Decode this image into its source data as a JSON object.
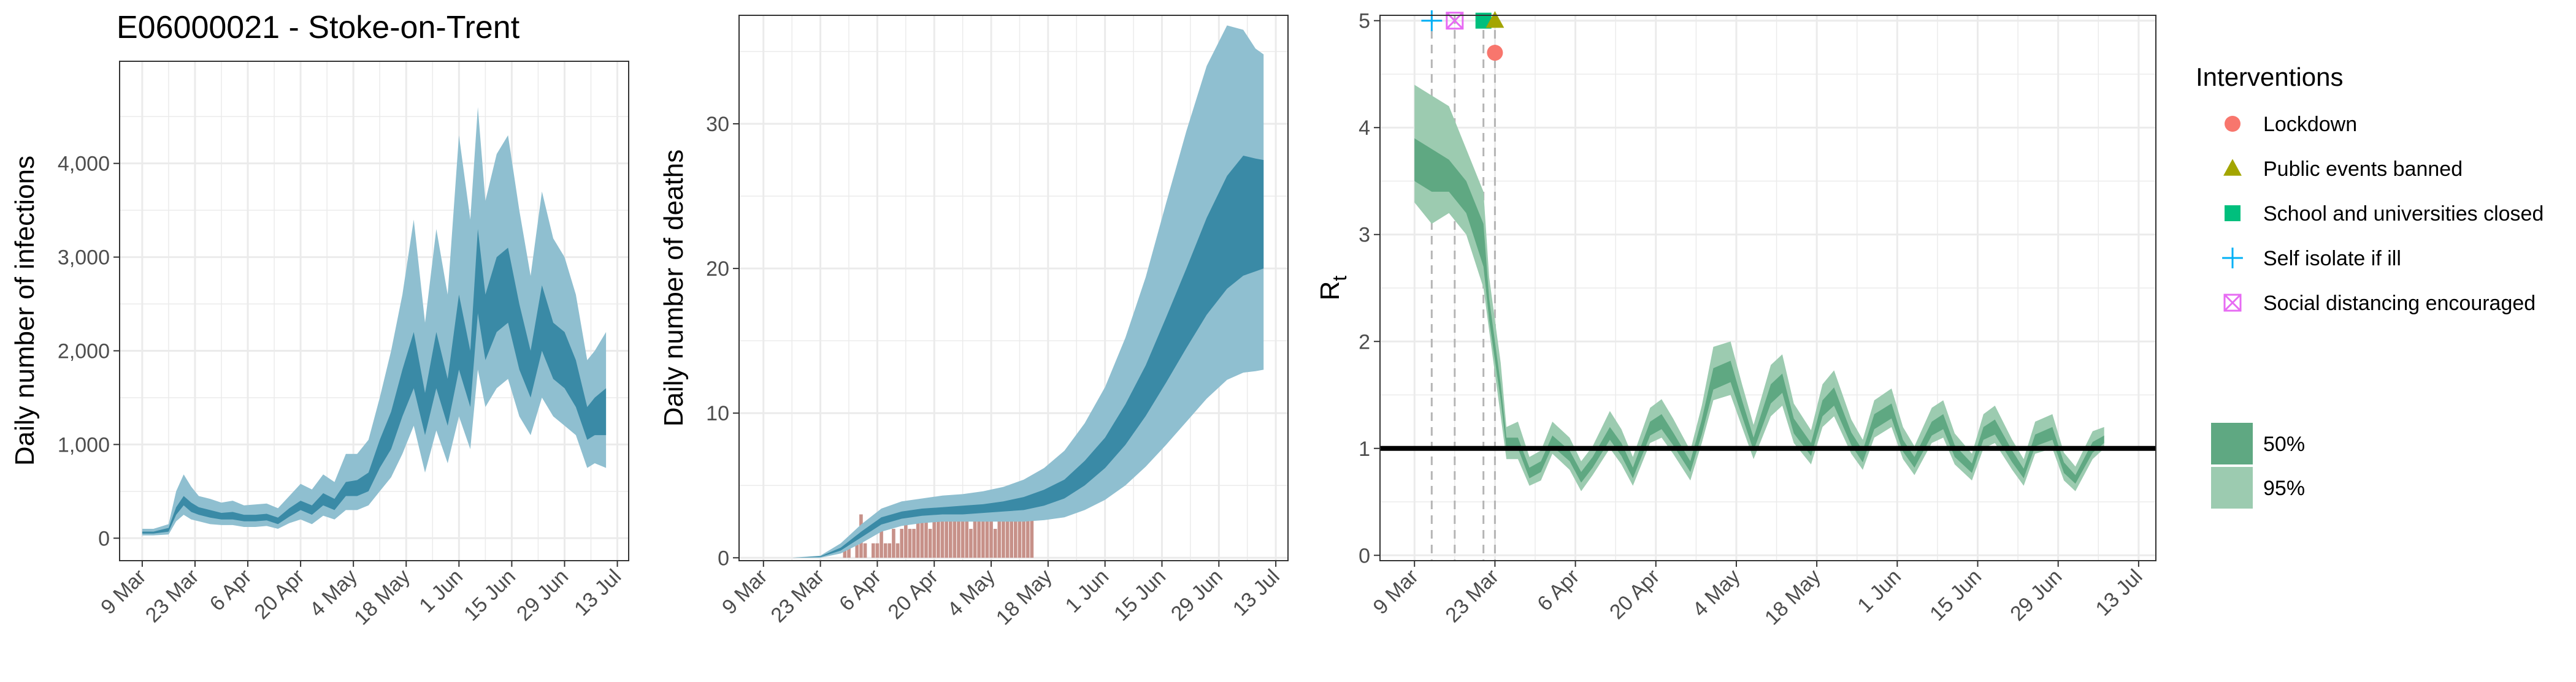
{
  "title": "E06000021 - Stoke-on-Trent",
  "date_labels": [
    "9 Mar",
    "23 Mar",
    "6 Apr",
    "20 Apr",
    "4 May",
    "18 May",
    "1 Jun",
    "15 Jun",
    "29 Jun",
    "13 Jul"
  ],
  "colors": {
    "infections_band_95": "#8fbfd0",
    "infections_band_50": "#3a8aa6",
    "deaths_band_95": "#8fbfd0",
    "deaths_band_50": "#3a8aa6",
    "observed_deaths_bar": "#c79189",
    "rt_band_95": "#9ccbb0",
    "rt_band_50": "#5fa882",
    "grid": "#ebebeb",
    "lockdown": "#f8766d",
    "public_events_banned": "#a3a500",
    "schools_closed": "#00bf7d",
    "self_isolate": "#00b0f6",
    "social_distancing": "#e76bf3"
  },
  "chart_data": [
    {
      "type": "area",
      "panel": "infections",
      "ylabel": "Daily number of infections",
      "y_ticks": [
        0,
        1000,
        2000,
        3000,
        4000
      ],
      "y_tick_labels": [
        "0",
        "1,000",
        "2,000",
        "3,000",
        "4,000"
      ],
      "ylim": [
        0,
        4700
      ],
      "x_start": "2020-03-09",
      "x_end": "2020-07-10",
      "knots": {
        "dates": [
          "2020-03-09",
          "2020-03-12",
          "2020-03-16",
          "2020-03-18",
          "2020-03-20",
          "2020-03-22",
          "2020-03-24",
          "2020-03-27",
          "2020-03-30",
          "2020-04-02",
          "2020-04-05",
          "2020-04-08",
          "2020-04-11",
          "2020-04-14",
          "2020-04-17",
          "2020-04-20",
          "2020-04-23",
          "2020-04-26",
          "2020-04-29",
          "2020-05-02",
          "2020-05-05",
          "2020-05-08",
          "2020-05-11",
          "2020-05-14",
          "2020-05-17",
          "2020-05-20",
          "2020-05-23",
          "2020-05-26",
          "2020-05-29",
          "2020-06-01",
          "2020-06-04",
          "2020-06-06",
          "2020-06-08",
          "2020-06-11",
          "2020-06-14",
          "2020-06-17",
          "2020-06-20",
          "2020-06-23",
          "2020-06-26",
          "2020-06-29",
          "2020-07-02",
          "2020-07-05",
          "2020-07-07",
          "2020-07-10"
        ],
        "lower95": [
          30,
          30,
          40,
          180,
          250,
          200,
          180,
          150,
          140,
          140,
          120,
          120,
          130,
          100,
          160,
          200,
          150,
          240,
          200,
          300,
          300,
          350,
          500,
          650,
          900,
          1200,
          700,
          1150,
          800,
          1300,
          950,
          1800,
          1400,
          1600,
          1700,
          1300,
          1100,
          1500,
          1300,
          1200,
          1100,
          750,
          800,
          750
        ],
        "lower50": [
          50,
          50,
          70,
          250,
          350,
          280,
          250,
          220,
          200,
          200,
          180,
          180,
          190,
          150,
          230,
          300,
          250,
          350,
          300,
          450,
          450,
          500,
          750,
          950,
          1300,
          1600,
          1100,
          1600,
          1200,
          1800,
          1400,
          2400,
          1900,
          2200,
          2300,
          1800,
          1500,
          2000,
          1700,
          1600,
          1400,
          1050,
          1100,
          1100
        ],
        "upper50": [
          70,
          70,
          110,
          330,
          450,
          380,
          330,
          300,
          270,
          280,
          250,
          250,
          260,
          220,
          320,
          400,
          350,
          480,
          420,
          600,
          620,
          700,
          1050,
          1350,
          1800,
          2200,
          1550,
          2200,
          1700,
          2600,
          2000,
          3300,
          2600,
          3000,
          3100,
          2500,
          2000,
          2700,
          2300,
          2200,
          1900,
          1400,
          1500,
          1600
        ],
        "upper95": [
          100,
          100,
          150,
          500,
          680,
          550,
          450,
          420,
          380,
          400,
          350,
          360,
          370,
          320,
          450,
          580,
          520,
          680,
          600,
          900,
          900,
          1050,
          1500,
          2000,
          2600,
          3400,
          2300,
          3300,
          2600,
          4300,
          3400,
          4600,
          3600,
          4100,
          4300,
          3500,
          2800,
          3700,
          3200,
          3000,
          2600,
          1900,
          2000,
          2200
        ]
      }
    },
    {
      "type": "area",
      "panel": "deaths",
      "ylabel": "Daily number of deaths",
      "y_ticks": [
        0,
        10,
        20,
        30
      ],
      "y_tick_labels": [
        "0",
        "10",
        "20",
        "30"
      ],
      "ylim": [
        0,
        37
      ],
      "x_start": "2020-03-09",
      "x_end": "2020-07-10",
      "knots": {
        "dates": [
          "2020-03-09",
          "2020-03-16",
          "2020-03-23",
          "2020-03-28",
          "2020-04-02",
          "2020-04-07",
          "2020-04-12",
          "2020-04-17",
          "2020-04-22",
          "2020-04-27",
          "2020-05-02",
          "2020-05-07",
          "2020-05-12",
          "2020-05-17",
          "2020-05-22",
          "2020-05-27",
          "2020-06-01",
          "2020-06-06",
          "2020-06-11",
          "2020-06-16",
          "2020-06-21",
          "2020-06-26",
          "2020-07-01",
          "2020-07-05",
          "2020-07-08",
          "2020-07-10"
        ],
        "lower95": [
          0,
          0,
          0,
          0.3,
          1,
          1.8,
          2.2,
          2.4,
          2.5,
          2.5,
          2.5,
          2.5,
          2.5,
          2.6,
          2.8,
          3.3,
          4,
          5,
          6.3,
          7.8,
          9.4,
          11,
          12.3,
          12.8,
          12.9,
          13
        ],
        "lower50": [
          0,
          0,
          0.05,
          0.5,
          1.4,
          2.3,
          2.7,
          2.9,
          3,
          3,
          3.1,
          3.2,
          3.3,
          3.6,
          4.1,
          5,
          6.2,
          7.8,
          9.8,
          12.1,
          14.5,
          16.8,
          18.6,
          19.5,
          19.8,
          20
        ],
        "upper50": [
          0,
          0,
          0.1,
          0.7,
          1.8,
          2.8,
          3.2,
          3.4,
          3.5,
          3.6,
          3.7,
          3.9,
          4.2,
          4.7,
          5.4,
          6.7,
          8.3,
          10.6,
          13.3,
          16.6,
          20,
          23.5,
          26.4,
          27.8,
          27.6,
          27.5
        ],
        "upper95": [
          0,
          0,
          0.15,
          1,
          2.3,
          3.4,
          3.9,
          4.1,
          4.3,
          4.4,
          4.6,
          4.9,
          5.4,
          6.2,
          7.4,
          9.3,
          11.8,
          15.2,
          19.4,
          24.5,
          29.5,
          34,
          36.8,
          36.5,
          35.2,
          34.8
        ]
      },
      "bars": {
        "dates": [
          "2020-03-25",
          "2020-03-26",
          "2020-03-27",
          "2020-03-28",
          "2020-03-29",
          "2020-03-30",
          "2020-03-31",
          "2020-04-01",
          "2020-04-02",
          "2020-04-03",
          "2020-04-04",
          "2020-04-05",
          "2020-04-06",
          "2020-04-07",
          "2020-04-08",
          "2020-04-09",
          "2020-04-10",
          "2020-04-11",
          "2020-04-12",
          "2020-04-13",
          "2020-04-14",
          "2020-04-15",
          "2020-04-16",
          "2020-04-17",
          "2020-04-18",
          "2020-04-19",
          "2020-04-20",
          "2020-04-21",
          "2020-04-22",
          "2020-04-23",
          "2020-04-24",
          "2020-04-25",
          "2020-04-26",
          "2020-04-27",
          "2020-04-28",
          "2020-04-29",
          "2020-04-30",
          "2020-05-01",
          "2020-05-02",
          "2020-05-03",
          "2020-05-04",
          "2020-05-05",
          "2020-05-06",
          "2020-05-07",
          "2020-05-08",
          "2020-05-09",
          "2020-05-10",
          "2020-05-11",
          "2020-05-12",
          "2020-05-13",
          "2020-05-14"
        ],
        "values": [
          0,
          0,
          0,
          0,
          1,
          1,
          0,
          1,
          3,
          1,
          0,
          1,
          1,
          2,
          1,
          1,
          2,
          1,
          2,
          3,
          2,
          2,
          3,
          4,
          3,
          2,
          3,
          3,
          4,
          4,
          3,
          3,
          4,
          3,
          3,
          2,
          3,
          3,
          4,
          3,
          3,
          2,
          3,
          3,
          3,
          4,
          3,
          3,
          3,
          3,
          3
        ]
      }
    },
    {
      "type": "area",
      "panel": "rt",
      "ylabel": "R",
      "ylabel_subscript": "t",
      "y_ticks": [
        0,
        1,
        2,
        3,
        4,
        5
      ],
      "y_tick_labels": [
        "0",
        "1",
        "2",
        "3",
        "4",
        "5"
      ],
      "ylim": [
        0,
        5
      ],
      "reference_line": 1,
      "x_start": "2020-03-09",
      "x_end": "2020-07-10",
      "knots": {
        "dates": [
          "2020-03-09",
          "2020-03-12",
          "2020-03-15",
          "2020-03-18",
          "2020-03-21",
          "2020-03-22",
          "2020-03-24",
          "2020-03-25",
          "2020-03-27",
          "2020-03-29",
          "2020-03-31",
          "2020-04-02",
          "2020-04-05",
          "2020-04-07",
          "2020-04-09",
          "2020-04-12",
          "2020-04-14",
          "2020-04-16",
          "2020-04-19",
          "2020-04-21",
          "2020-04-23",
          "2020-04-26",
          "2020-04-28",
          "2020-04-30",
          "2020-05-03",
          "2020-05-05",
          "2020-05-07",
          "2020-05-10",
          "2020-05-12",
          "2020-05-14",
          "2020-05-17",
          "2020-05-19",
          "2020-05-21",
          "2020-05-24",
          "2020-05-26",
          "2020-05-28",
          "2020-05-31",
          "2020-06-02",
          "2020-06-04",
          "2020-06-07",
          "2020-06-09",
          "2020-06-11",
          "2020-06-14",
          "2020-06-16",
          "2020-06-18",
          "2020-06-21",
          "2020-06-23",
          "2020-06-25",
          "2020-06-28",
          "2020-06-30",
          "2020-07-02",
          "2020-07-05",
          "2020-07-07"
        ],
        "lower95": [
          3.3,
          3.1,
          3.2,
          3.0,
          2.5,
          2.1,
          1.3,
          0.9,
          0.9,
          0.65,
          0.7,
          0.95,
          0.8,
          0.6,
          0.75,
          1.0,
          0.85,
          0.65,
          1.05,
          1.1,
          0.95,
          0.7,
          1.05,
          1.45,
          1.5,
          1.2,
          0.9,
          1.3,
          1.4,
          1.05,
          0.85,
          1.2,
          1.3,
          0.95,
          0.8,
          1.1,
          1.2,
          0.9,
          0.75,
          1.05,
          1.1,
          0.85,
          0.7,
          1.0,
          1.05,
          0.8,
          0.65,
          0.95,
          1.0,
          0.7,
          0.6,
          0.9,
          1.0
        ],
        "lower50": [
          3.5,
          3.4,
          3.4,
          3.2,
          2.7,
          2.2,
          1.45,
          1.0,
          1.0,
          0.72,
          0.78,
          1.02,
          0.88,
          0.68,
          0.82,
          1.08,
          0.93,
          0.72,
          1.12,
          1.18,
          1.03,
          0.78,
          1.13,
          1.55,
          1.62,
          1.3,
          0.98,
          1.42,
          1.52,
          1.14,
          0.93,
          1.3,
          1.4,
          1.03,
          0.87,
          1.18,
          1.28,
          0.97,
          0.82,
          1.12,
          1.18,
          0.92,
          0.77,
          1.08,
          1.13,
          0.87,
          0.72,
          1.02,
          1.08,
          0.77,
          0.67,
          0.96,
          1.05
        ],
        "upper50": [
          3.9,
          3.8,
          3.7,
          3.5,
          3.1,
          2.4,
          1.6,
          1.1,
          1.1,
          0.82,
          0.88,
          1.12,
          0.98,
          0.78,
          0.92,
          1.2,
          1.05,
          0.82,
          1.25,
          1.32,
          1.15,
          0.88,
          1.27,
          1.75,
          1.82,
          1.45,
          1.1,
          1.6,
          1.7,
          1.28,
          1.05,
          1.45,
          1.57,
          1.15,
          0.98,
          1.32,
          1.42,
          1.08,
          0.92,
          1.25,
          1.32,
          1.03,
          0.86,
          1.2,
          1.27,
          0.98,
          0.81,
          1.13,
          1.2,
          0.87,
          0.75,
          1.06,
          1.12
        ],
        "upper95": [
          4.4,
          4.3,
          4.2,
          3.8,
          3.4,
          2.6,
          1.8,
          1.2,
          1.25,
          0.92,
          0.98,
          1.25,
          1.1,
          0.88,
          1.02,
          1.35,
          1.18,
          0.92,
          1.38,
          1.46,
          1.28,
          0.98,
          1.4,
          1.95,
          2.0,
          1.6,
          1.22,
          1.78,
          1.88,
          1.42,
          1.17,
          1.6,
          1.73,
          1.27,
          1.08,
          1.45,
          1.56,
          1.2,
          1.02,
          1.38,
          1.45,
          1.14,
          0.95,
          1.32,
          1.4,
          1.08,
          0.9,
          1.25,
          1.32,
          0.96,
          0.83,
          1.16,
          1.2
        ]
      },
      "interventions": [
        {
          "key": "self_isolate",
          "date": "2020-03-12",
          "y": 5.0,
          "shape": "plus"
        },
        {
          "key": "social_distancing",
          "date": "2020-03-16",
          "y": 5.0,
          "shape": "square-x"
        },
        {
          "key": "schools_closed",
          "date": "2020-03-21",
          "y": 5.0,
          "shape": "square"
        },
        {
          "key": "public_events_banned",
          "date": "2020-03-23",
          "y": 5.0,
          "shape": "triangle"
        },
        {
          "key": "lockdown",
          "date": "2020-03-23",
          "y": 4.7,
          "shape": "circle"
        }
      ]
    }
  ],
  "legend": {
    "interventions_title": "Interventions",
    "interventions": [
      {
        "label": "Lockdown",
        "shape": "circle",
        "color_key": "lockdown"
      },
      {
        "label": "Public events banned",
        "shape": "triangle",
        "color_key": "public_events_banned"
      },
      {
        "label": "School and universities closed",
        "shape": "square",
        "color_key": "schools_closed"
      },
      {
        "label": "Self isolate if ill",
        "shape": "plus",
        "color_key": "self_isolate"
      },
      {
        "label": "Social distancing encouraged",
        "shape": "square-x",
        "color_key": "social_distancing"
      }
    ],
    "bands": [
      {
        "label": "50%",
        "color_key": "rt_band_50"
      },
      {
        "label": "95%",
        "color_key": "rt_band_95"
      }
    ]
  }
}
